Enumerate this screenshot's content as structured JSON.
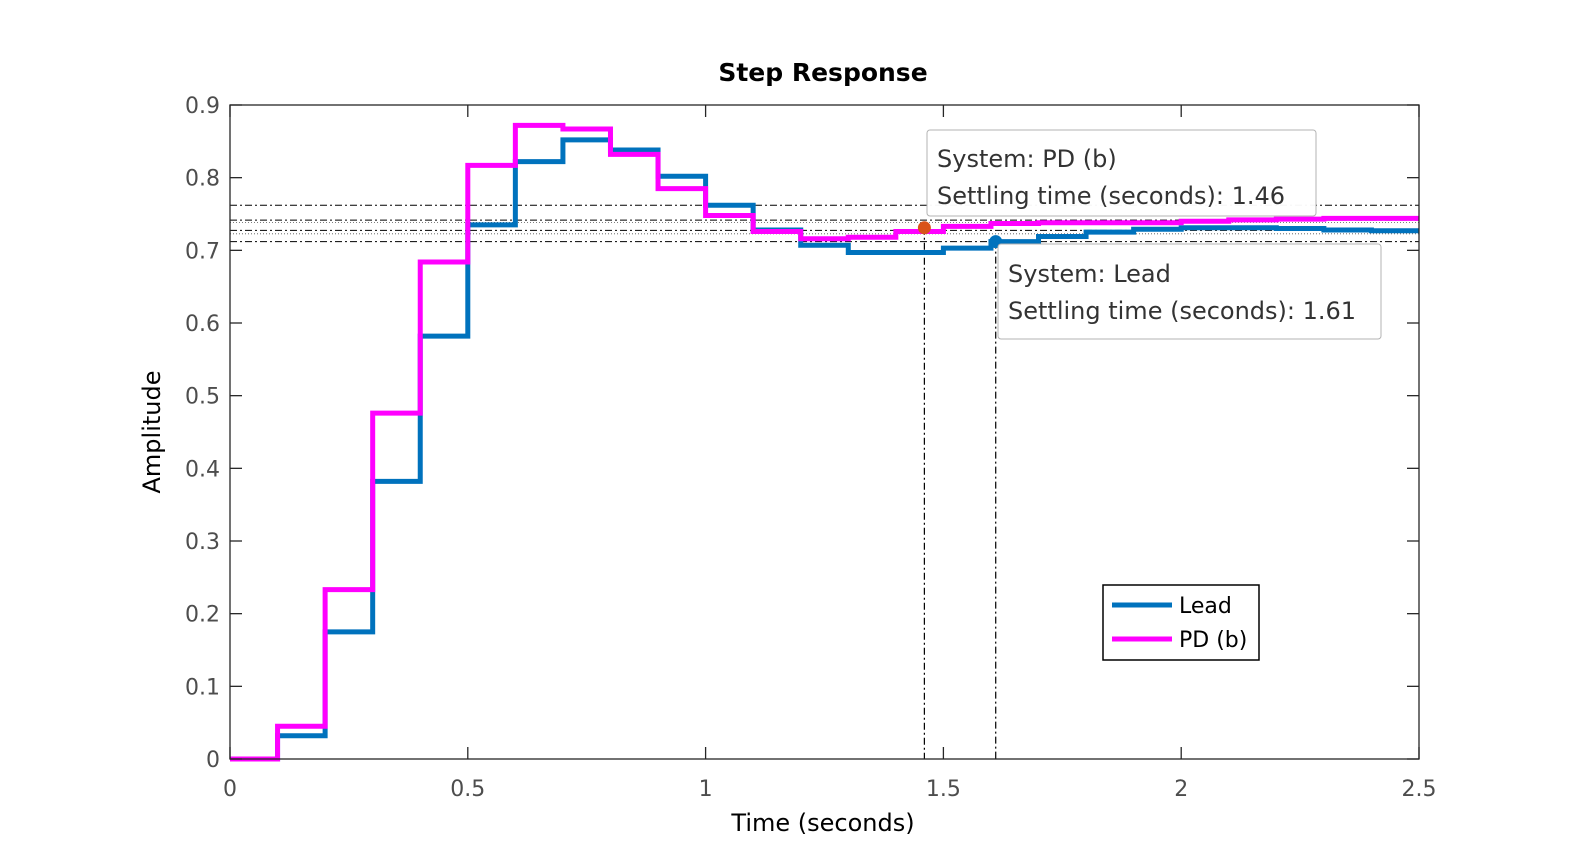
{
  "chart_data": {
    "type": "line",
    "step": true,
    "title": "Step Response",
    "xlabel": "Time (seconds)",
    "ylabel": "Amplitude",
    "xlim": [
      0,
      2.5
    ],
    "ylim": [
      0,
      0.9
    ],
    "xticks": [
      0,
      0.5,
      1,
      1.5,
      2,
      2.5
    ],
    "xtick_labels": [
      "0",
      "0.5",
      "1",
      "1.5",
      "2",
      "2.5"
    ],
    "yticks": [
      0,
      0.1,
      0.2,
      0.3,
      0.4,
      0.5,
      0.6,
      0.7,
      0.8,
      0.9
    ],
    "ytick_labels": [
      "0",
      "0.1",
      "0.2",
      "0.3",
      "0.4",
      "0.5",
      "0.6",
      "0.7",
      "0.8",
      "0.9"
    ],
    "grid": false,
    "legend_position": "bottom-right",
    "series": [
      {
        "name": "Lead",
        "color": "#0072BD",
        "x": [
          0,
          0.1,
          0.2,
          0.3,
          0.4,
          0.5,
          0.6,
          0.7,
          0.8,
          0.9,
          1.0,
          1.1,
          1.2,
          1.3,
          1.4,
          1.5,
          1.6,
          1.7,
          1.8,
          1.9,
          2.0,
          2.1,
          2.2,
          2.3,
          2.4
        ],
        "y": [
          0,
          0.032,
          0.175,
          0.382,
          0.582,
          0.735,
          0.822,
          0.852,
          0.838,
          0.802,
          0.762,
          0.728,
          0.707,
          0.697,
          0.697,
          0.703,
          0.712,
          0.719,
          0.725,
          0.729,
          0.731,
          0.731,
          0.73,
          0.728,
          0.727
        ]
      },
      {
        "name": "PD (b)",
        "color": "#FF00FF",
        "x": [
          0,
          0.1,
          0.2,
          0.3,
          0.4,
          0.5,
          0.6,
          0.7,
          0.8,
          0.9,
          1.0,
          1.1,
          1.2,
          1.3,
          1.4,
          1.5,
          1.6,
          1.7,
          1.8,
          1.9,
          2.0,
          2.1,
          2.2,
          2.3,
          2.4
        ],
        "y": [
          0,
          0.045,
          0.233,
          0.476,
          0.684,
          0.817,
          0.872,
          0.867,
          0.832,
          0.785,
          0.748,
          0.726,
          0.716,
          0.718,
          0.726,
          0.733,
          0.737,
          0.738,
          0.738,
          0.738,
          0.74,
          0.742,
          0.743,
          0.744,
          0.744
        ]
      }
    ],
    "settling_bands": {
      "Lead": [
        0.712,
        0.7415
      ],
      "PD (b)": [
        0.7275,
        0.762
      ]
    },
    "settling_points": [
      {
        "series": "PD (b)",
        "x": 1.46,
        "y": 0.731,
        "marker_color": "#D95319"
      },
      {
        "series": "Lead",
        "x": 1.61,
        "y": 0.712,
        "marker_color": "#0072BD"
      }
    ],
    "annotations": [
      {
        "series": "PD (b)",
        "line1": "System: PD (b)",
        "line2": "Settling time (seconds): 1.46"
      },
      {
        "series": "Lead",
        "line1": "System: Lead",
        "line2": "Settling time (seconds): 1.61"
      }
    ]
  }
}
